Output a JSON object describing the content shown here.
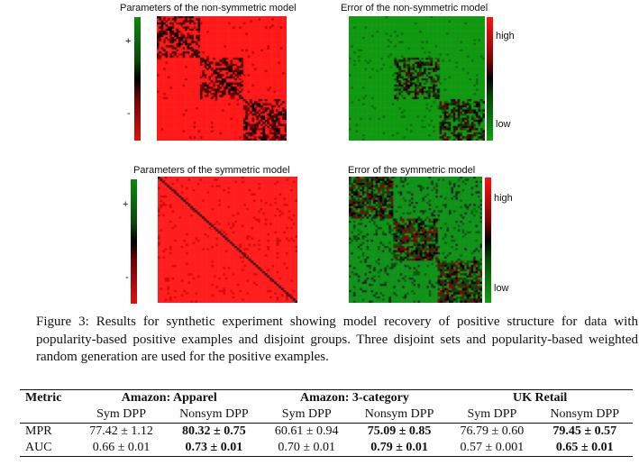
{
  "panels": [
    {
      "title": "Parameters of the non-symmetric model",
      "type": "nonsym-param",
      "colorbar": "green-red",
      "labels": [
        "+",
        "-"
      ]
    },
    {
      "title": "Error of the non-symmetric model",
      "type": "nonsym-error",
      "colorbar": "red-green",
      "labels": [
        "high",
        "low"
      ]
    },
    {
      "title": "Parameters of the symmetric model",
      "type": "sym-param",
      "colorbar": "green-red",
      "labels": [
        "+",
        "-"
      ]
    },
    {
      "title": "Error of the symmetric model",
      "type": "sym-error",
      "colorbar": "red-green",
      "labels": [
        "high",
        "low"
      ]
    }
  ],
  "colors": {
    "red": "#ff1a1a",
    "green": "#118811",
    "dark": "#000000"
  },
  "caption": "Figure 3: Results for synthetic experiment showing model recovery of positive structure for data with popularity-based positive examples and disjoint groups. Three disjoint sets and popularity-based weighted random generation are used for the positive examples.",
  "table": {
    "metric_header": "Metric",
    "groups": [
      "Amazon: Apparel",
      "Amazon: 3-category",
      "UK Retail"
    ],
    "subheaders": [
      "Sym DPP",
      "Nonsym DPP",
      "Sym DPP",
      "Nonsym DPP",
      "Sym DPP",
      "Nonsym DPP"
    ],
    "rows": [
      {
        "metric": "MPR",
        "cells": [
          "77.42 ± 1.12",
          "80.32 ± 0.75",
          "60.61 ± 0.94",
          "75.09 ± 0.85",
          "76.79 ± 0.60",
          "79.45 ± 0.57"
        ]
      },
      {
        "metric": "AUC",
        "cells": [
          "0.66 ± 0.01",
          "0.73 ± 0.01",
          "0.70 ± 0.01",
          "0.79 ± 0.01",
          "0.57 ± 0.001",
          "0.65 ± 0.01"
        ]
      }
    ],
    "bold_columns": [
      1,
      3,
      5
    ]
  }
}
